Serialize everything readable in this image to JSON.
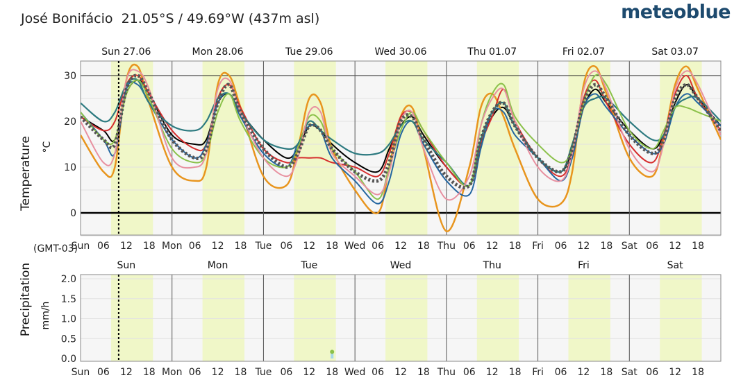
{
  "header": {
    "location": "José Bonifácio",
    "coordinates": "21.05°S / 49.69°W (437m asl)",
    "brand": "meteoblue"
  },
  "timezone_label": "(GMT-03)",
  "colors": {
    "daylight_band": "#f0f7c8",
    "plot_bg": "#f6f6f6"
  },
  "chart_data": [
    {
      "type": "line",
      "panel": "temperature",
      "ylabel": "Temperature",
      "yunit": "°C",
      "ylim": [
        -5,
        34
      ],
      "yticks": [
        0,
        10,
        20,
        30
      ],
      "xlim": [
        0,
        168
      ],
      "x_unit": "hours from Sun 27.06 00:00 (GMT-03)",
      "top_day_labels": [
        "Sun 27.06",
        "Mon 28.06",
        "Tue 29.06",
        "Wed 30.06",
        "Thu 01.07",
        "Fri 02.07",
        "Sat 03.07"
      ],
      "bottom_ticks": [
        "Sun",
        "06",
        "12",
        "18",
        "Mon",
        "06",
        "12",
        "18",
        "Tue",
        "06",
        "12",
        "18",
        "Wed",
        "06",
        "12",
        "18",
        "Thu",
        "06",
        "12",
        "18",
        "Fri",
        "06",
        "12",
        "18",
        "Sat",
        "06",
        "12",
        "18"
      ],
      "now_marker_hour": 10,
      "daylight_hours": [
        [
          8,
          19
        ],
        [
          32,
          43
        ],
        [
          56,
          67
        ],
        [
          80,
          91
        ],
        [
          104,
          115
        ],
        [
          128,
          139
        ],
        [
          152,
          163
        ]
      ],
      "x": [
        0,
        6,
        9,
        12,
        15,
        18,
        24,
        30,
        33,
        36,
        39,
        42,
        48,
        54,
        57,
        60,
        63,
        66,
        72,
        78,
        81,
        84,
        87,
        90,
        96,
        102,
        105,
        108,
        111,
        114,
        120,
        126,
        129,
        132,
        135,
        138,
        144,
        150,
        153,
        156,
        159,
        162,
        168
      ],
      "series": [
        {
          "color": "#000000",
          "width": 2,
          "values": [
            21,
            18,
            16,
            26,
            29,
            26,
            17,
            15,
            16,
            24,
            26,
            22,
            16,
            12,
            14,
            19,
            18,
            15,
            11,
            9,
            14,
            19,
            21,
            17,
            10,
            6,
            15,
            21,
            23,
            19,
            12,
            9,
            14,
            23,
            27,
            24,
            18,
            14,
            17,
            24,
            28,
            25,
            19
          ]
        },
        {
          "color": "#e8951e",
          "width": 2.5,
          "values": [
            17,
            9,
            10,
            29,
            32,
            24,
            10,
            7,
            10,
            28,
            30,
            23,
            8,
            6,
            14,
            25,
            24,
            14,
            5,
            0,
            10,
            21,
            23,
            14,
            -4,
            10,
            23,
            26,
            21,
            14,
            3,
            2,
            9,
            28,
            32,
            26,
            12,
            8,
            16,
            28,
            32,
            27,
            16
          ]
        },
        {
          "color": "#d62e2e",
          "width": 2,
          "values": [
            21,
            18,
            20,
            28,
            30,
            26,
            18,
            14,
            15,
            25,
            28,
            23,
            14,
            11,
            12,
            12,
            12,
            11,
            10,
            8,
            13,
            21,
            22,
            18,
            10,
            6,
            15,
            21,
            27,
            20,
            12,
            8,
            13,
            25,
            29,
            24,
            15,
            11,
            17,
            26,
            30,
            25,
            18
          ]
        },
        {
          "color": "#2466a0",
          "width": 2,
          "values": [
            22,
            16,
            13,
            27,
            28,
            24,
            16,
            12,
            15,
            24,
            26,
            21,
            13,
            10,
            15,
            19,
            18,
            12,
            7,
            2,
            7,
            17,
            20,
            15,
            7,
            4,
            14,
            22,
            22,
            17,
            12,
            7,
            12,
            23,
            26,
            23,
            17,
            13,
            15,
            23,
            26,
            24,
            19
          ]
        },
        {
          "color": "#2d7a80",
          "width": 2.2,
          "values": [
            24,
            20,
            22,
            28,
            29,
            24,
            19,
            18,
            20,
            25,
            26,
            22,
            16,
            14,
            15,
            20,
            18,
            16,
            13,
            13,
            15,
            19,
            20,
            16,
            11,
            6,
            16,
            22,
            24,
            19,
            12,
            9,
            15,
            23,
            25,
            25,
            20,
            16,
            17,
            23,
            25,
            25,
            20
          ]
        },
        {
          "color": "#8bc14a",
          "width": 2,
          "values": [
            22,
            16,
            16,
            26,
            29,
            25,
            14,
            11,
            13,
            22,
            26,
            20,
            12,
            10,
            14,
            21,
            20,
            14,
            9,
            3,
            10,
            18,
            22,
            18,
            11,
            6,
            19,
            26,
            28,
            21,
            15,
            11,
            14,
            24,
            30,
            28,
            18,
            14,
            18,
            23,
            23,
            22,
            20
          ]
        },
        {
          "color": "#e890a0",
          "width": 2,
          "values": [
            20,
            11,
            13,
            29,
            31,
            27,
            12,
            10,
            13,
            27,
            29,
            22,
            12,
            8,
            12,
            22,
            22,
            13,
            8,
            4,
            9,
            20,
            22,
            14,
            3,
            8,
            19,
            25,
            27,
            20,
            10,
            7,
            13,
            27,
            31,
            27,
            14,
            9,
            15,
            27,
            31,
            28,
            17
          ]
        },
        {
          "color": "#555555",
          "width": 5,
          "dash": "3,3",
          "values": [
            21,
            16,
            15,
            27,
            30,
            26,
            16,
            12,
            14,
            24,
            28,
            22,
            14,
            10,
            13,
            19,
            18,
            14,
            9,
            7,
            11,
            20,
            21,
            16,
            8,
            6,
            16,
            22,
            24,
            19,
            12,
            9,
            14,
            24,
            28,
            25,
            17,
            13,
            16,
            25,
            28,
            25,
            18
          ]
        }
      ]
    },
    {
      "type": "bar",
      "panel": "precipitation",
      "ylabel": "Precipitation",
      "yunit": "mm/h",
      "ylim": [
        0,
        2.2
      ],
      "yticks": [
        "0.0",
        "0.5",
        "1.0",
        "1.5",
        "2.0"
      ],
      "day_labels": [
        "Sun",
        "Mon",
        "Tue",
        "Wed",
        "Thu",
        "Fri",
        "Sat"
      ],
      "bars": [
        {
          "x": 66,
          "value": 0.15
        }
      ]
    }
  ]
}
